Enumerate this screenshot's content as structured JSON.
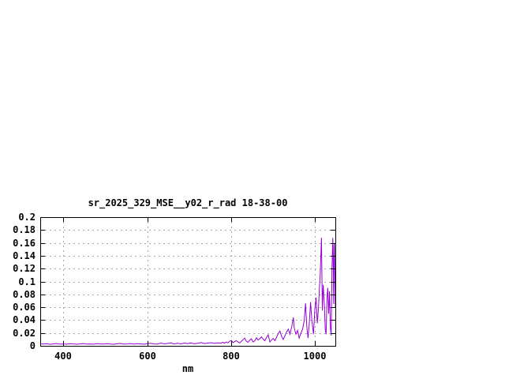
{
  "page": {
    "background_color": "#ffffff",
    "description": "gnuplot-style spectrum plot in lower-left of white canvas"
  },
  "chart_data": {
    "type": "line",
    "title": "sr_2025_329_MSE__y02_r_rad 18-38-00",
    "xlabel": "nm",
    "ylabel": "",
    "xlim": [
      345,
      1048
    ],
    "ylim": [
      0,
      0.2
    ],
    "x_ticks": [
      400,
      600,
      800,
      1000
    ],
    "x_tick_labels": [
      "400",
      "600",
      "800",
      "1000"
    ],
    "y_ticks": [
      0,
      0.02,
      0.04,
      0.06,
      0.08,
      0.1,
      0.12,
      0.14,
      0.16,
      0.18,
      0.2
    ],
    "y_tick_labels": [
      "0",
      "0.02",
      "0.04",
      "0.06",
      "0.08",
      "0.1",
      "0.12",
      "0.14",
      "0.16",
      "0.18",
      "0.2"
    ],
    "grid": true,
    "grid_style": "dashed",
    "legend_position": "none",
    "line_color": "#9400d3",
    "grid_color": "#a9a9a9",
    "border_color": "#000000",
    "series": [
      {
        "name": "sr_2025_329_MSE__y02_r_rad",
        "x": [
          345,
          352,
          360,
          368,
          376,
          384,
          392,
          400,
          408,
          416,
          424,
          432,
          440,
          448,
          456,
          464,
          472,
          480,
          488,
          496,
          504,
          512,
          520,
          528,
          536,
          544,
          552,
          560,
          568,
          576,
          584,
          592,
          600,
          608,
          616,
          624,
          632,
          640,
          648,
          656,
          664,
          672,
          680,
          688,
          696,
          704,
          712,
          720,
          728,
          736,
          744,
          752,
          760,
          768,
          776,
          780,
          784,
          788,
          792,
          796,
          800,
          804,
          808,
          812,
          816,
          820,
          824,
          828,
          832,
          836,
          840,
          844,
          848,
          852,
          856,
          860,
          864,
          868,
          872,
          876,
          880,
          884,
          888,
          892,
          896,
          900,
          904,
          908,
          912,
          916,
          920,
          924,
          928,
          932,
          936,
          940,
          944,
          948,
          950,
          954,
          958,
          962,
          966,
          970,
          974,
          977,
          980,
          983,
          986,
          989,
          992,
          996,
          999,
          1002,
          1005,
          1008,
          1010,
          1012,
          1015,
          1017,
          1019,
          1022,
          1024,
          1026,
          1028,
          1030,
          1032,
          1034,
          1036,
          1038,
          1040,
          1042,
          1044,
          1045,
          1046,
          1047,
          1048
        ],
        "y": [
          0.003,
          0.0028,
          0.0033,
          0.0025,
          0.003,
          0.0036,
          0.0027,
          0.003,
          0.0026,
          0.0033,
          0.003,
          0.0024,
          0.0031,
          0.0035,
          0.0027,
          0.003,
          0.0026,
          0.0033,
          0.0029,
          0.0027,
          0.0034,
          0.003,
          0.0025,
          0.0032,
          0.0037,
          0.0028,
          0.003,
          0.0035,
          0.0027,
          0.0033,
          0.003,
          0.0026,
          0.0034,
          0.0039,
          0.003,
          0.0028,
          0.0043,
          0.0032,
          0.0037,
          0.0046,
          0.003,
          0.0039,
          0.0031,
          0.0043,
          0.0035,
          0.0046,
          0.0032,
          0.0041,
          0.005,
          0.0035,
          0.0043,
          0.0049,
          0.0038,
          0.0046,
          0.004,
          0.0055,
          0.004,
          0.006,
          0.0045,
          0.007,
          0.0085,
          0.005,
          0.0065,
          0.008,
          0.006,
          0.0045,
          0.007,
          0.0095,
          0.012,
          0.007,
          0.0055,
          0.009,
          0.011,
          0.006,
          0.008,
          0.0125,
          0.009,
          0.011,
          0.014,
          0.0105,
          0.008,
          0.013,
          0.017,
          0.006,
          0.009,
          0.0115,
          0.008,
          0.0135,
          0.019,
          0.023,
          0.0145,
          0.01,
          0.016,
          0.022,
          0.026,
          0.018,
          0.03,
          0.044,
          0.028,
          0.018,
          0.024,
          0.012,
          0.02,
          0.026,
          0.04,
          0.066,
          0.03,
          0.012,
          0.035,
          0.068,
          0.04,
          0.018,
          0.055,
          0.075,
          0.035,
          0.06,
          0.09,
          0.11,
          0.168,
          0.055,
          0.095,
          0.06,
          0.025,
          0.018,
          0.075,
          0.09,
          0.05,
          0.085,
          0.03,
          0.016,
          0.12,
          0.168,
          0.065,
          0.155,
          0.16,
          0.11,
          0.06
        ]
      }
    ]
  }
}
